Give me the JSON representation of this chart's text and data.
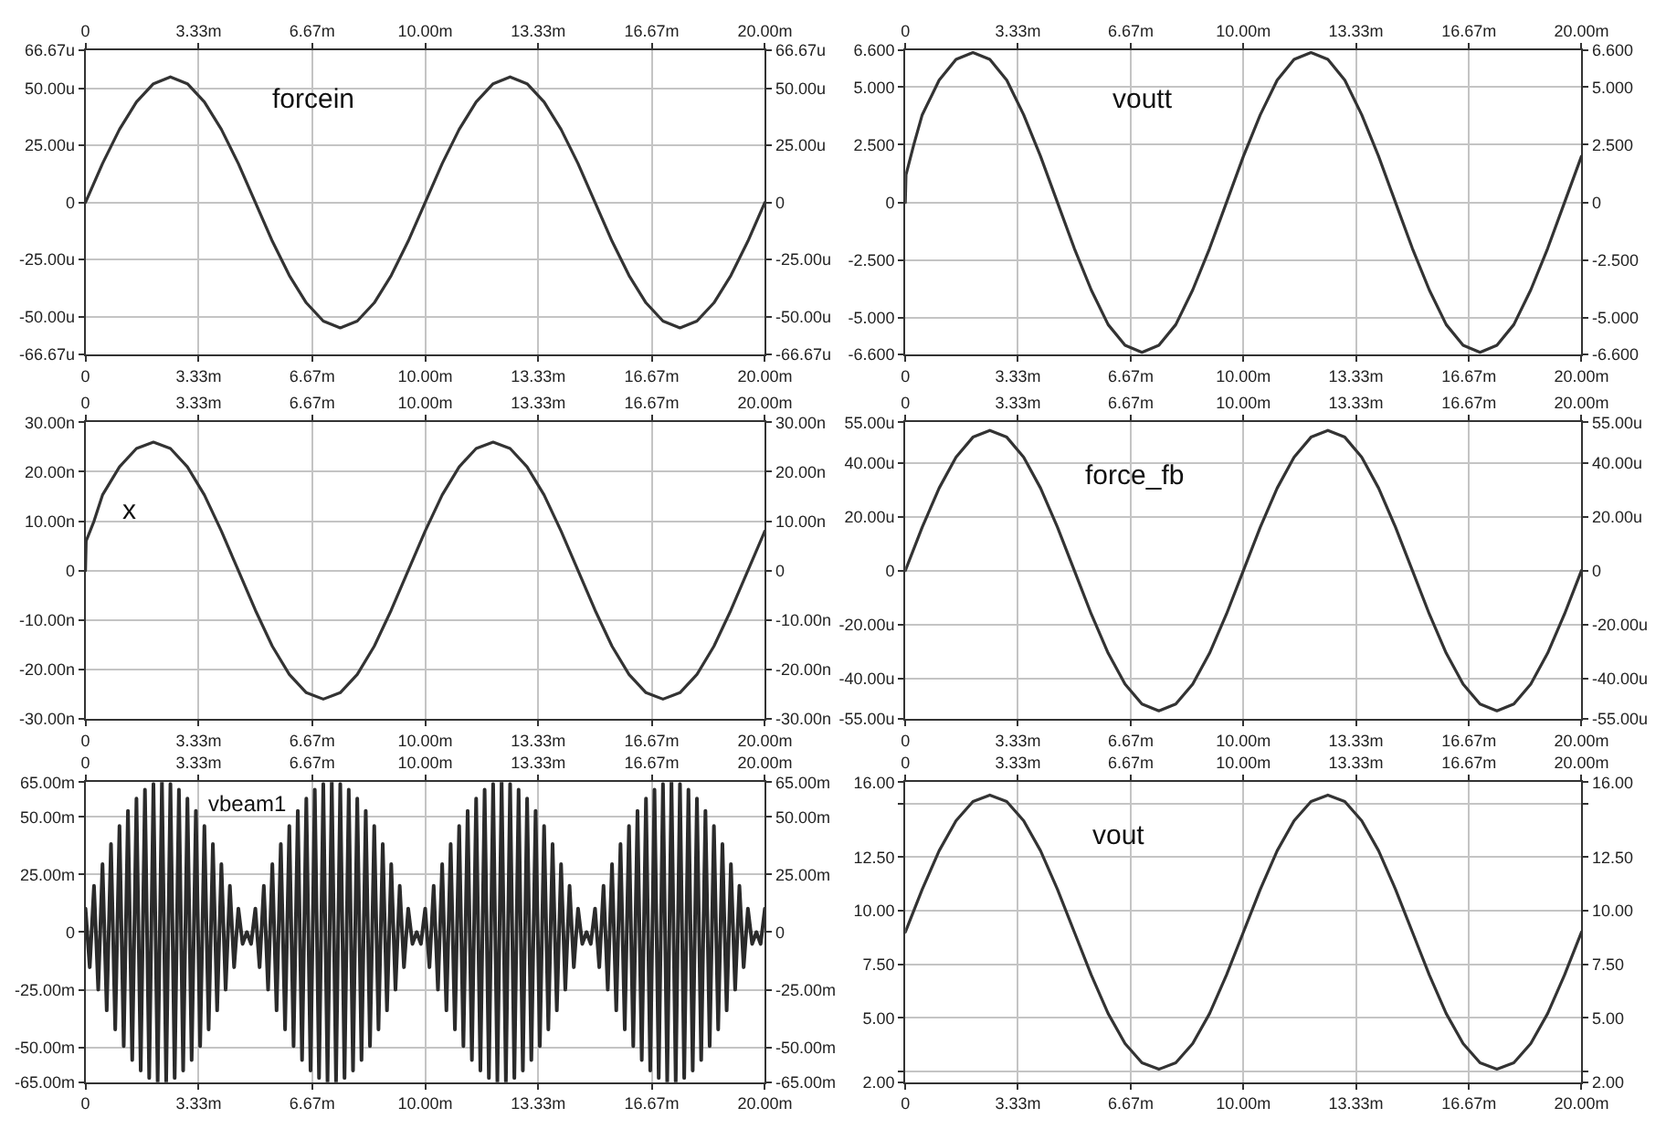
{
  "chart_data": [
    {
      "type": "line",
      "x": [
        0,
        0.5,
        1,
        1.5,
        2,
        2.5,
        3,
        3.5,
        4,
        4.5,
        5,
        5.5,
        6,
        6.5,
        7,
        7.5,
        8,
        8.5,
        9,
        9.5,
        10,
        10.5,
        11,
        11.5,
        12,
        12.5,
        13,
        13.5,
        14,
        14.5,
        15,
        15.5,
        16,
        16.5,
        17,
        17.5,
        18,
        18.5,
        19,
        19.5,
        20
      ],
      "series": [
        {
          "name": "forcein",
          "color": "#333333",
          "values": [
            0,
            17,
            32,
            44,
            52,
            55,
            52,
            44,
            32,
            17,
            0,
            -17,
            -32,
            -44,
            -52,
            -55,
            -52,
            -44,
            -32,
            -17,
            0,
            17,
            32,
            44,
            52,
            55,
            52,
            44,
            32,
            17,
            0,
            -17,
            -32,
            -44,
            -52,
            -55,
            -52,
            -44,
            -32,
            -17,
            0
          ]
        }
      ],
      "xlim": [
        0,
        20
      ],
      "xticks": [
        {
          "value": 0,
          "label": "0"
        },
        {
          "value": 3.33,
          "label": "3.33m"
        },
        {
          "value": 6.67,
          "label": "6.67m"
        },
        {
          "value": 10,
          "label": "10.00m"
        },
        {
          "value": 13.33,
          "label": "13.33m"
        },
        {
          "value": 16.67,
          "label": "16.67m"
        },
        {
          "value": 20,
          "label": "20.00m"
        }
      ],
      "x2lim": [
        0,
        20
      ],
      "x2ticks": [
        {
          "value": 0,
          "label": "0"
        },
        {
          "value": 3.33,
          "label": "3.33m"
        },
        {
          "value": 6.67,
          "label": "6.67m"
        },
        {
          "value": 10,
          "label": "10.00m"
        },
        {
          "value": 13.33,
          "label": "13.33m"
        },
        {
          "value": 16.67,
          "label": "16.67m"
        },
        {
          "value": 20,
          "label": "20.00m"
        }
      ],
      "ylim": [
        -66.67,
        66.67
      ],
      "yticks": [
        {
          "value": -66.67,
          "label": "-66.67u"
        },
        {
          "value": -50,
          "label": "-50.00u"
        },
        {
          "value": -25,
          "label": "-25.00u"
        },
        {
          "value": 0,
          "label": "0"
        },
        {
          "value": 25,
          "label": "25.00u"
        },
        {
          "value": 50,
          "label": "50.00u"
        },
        {
          "value": 66.67,
          "label": "66.67u"
        }
      ],
      "y2lim": [
        -66.67,
        66.67
      ],
      "y2ticks": [
        {
          "value": -66.67,
          "label": "-66.67u"
        },
        {
          "value": -50,
          "label": "-50.00u"
        },
        {
          "value": -25,
          "label": "-25.00u"
        },
        {
          "value": 0,
          "label": "0"
        },
        {
          "value": 25,
          "label": "25.00u"
        },
        {
          "value": 50,
          "label": "50.00u"
        },
        {
          "value": 66.67,
          "label": "66.67u"
        }
      ],
      "grid": true
    },
    {
      "type": "line",
      "x": [
        0,
        0.02,
        0.25,
        0.5,
        1,
        1.5,
        2,
        2.5,
        3,
        3.5,
        4,
        4.5,
        5,
        5.5,
        6,
        6.5,
        7,
        7.5,
        8,
        8.5,
        9,
        9.5,
        10,
        10.5,
        11,
        11.5,
        12,
        12.5,
        13,
        13.5,
        14,
        14.5,
        15,
        15.5,
        16,
        16.5,
        17,
        17.5,
        18,
        18.5,
        19,
        19.5,
        20
      ],
      "series": [
        {
          "name": "voutt",
          "color": "#333333",
          "values": [
            0,
            1.2,
            2.5,
            3.8,
            5.3,
            6.2,
            6.5,
            6.2,
            5.3,
            3.8,
            2.0,
            0,
            -2.0,
            -3.8,
            -5.3,
            -6.2,
            -6.5,
            -6.2,
            -5.3,
            -3.8,
            -2.0,
            0,
            2.0,
            3.8,
            5.3,
            6.2,
            6.5,
            6.2,
            5.3,
            3.8,
            2.0,
            0,
            -2.0,
            -3.8,
            -5.3,
            -6.2,
            -6.5,
            -6.2,
            -5.3,
            -3.8,
            -2.0,
            0,
            2.0
          ]
        }
      ],
      "xlim": [
        0,
        20
      ],
      "xticks": [
        {
          "value": 0,
          "label": "0"
        },
        {
          "value": 3.33,
          "label": "3.33m"
        },
        {
          "value": 6.67,
          "label": "6.67m"
        },
        {
          "value": 10,
          "label": "10.00m"
        },
        {
          "value": 13.33,
          "label": "13.33m"
        },
        {
          "value": 16.67,
          "label": "16.67m"
        },
        {
          "value": 20,
          "label": "20.00m"
        }
      ],
      "x2lim": [
        0,
        20
      ],
      "x2ticks": [
        {
          "value": 0,
          "label": "0"
        },
        {
          "value": 3.33,
          "label": "3.33m"
        },
        {
          "value": 6.67,
          "label": "6.67m"
        },
        {
          "value": 10,
          "label": "10.00m"
        },
        {
          "value": 13.33,
          "label": "13.33m"
        },
        {
          "value": 16.67,
          "label": "16.67m"
        },
        {
          "value": 20,
          "label": "20.00m"
        }
      ],
      "ylim": [
        -6.6,
        6.6
      ],
      "yticks": [
        {
          "value": -6.6,
          "label": "-6.600"
        },
        {
          "value": -5,
          "label": "-5.000"
        },
        {
          "value": -2.5,
          "label": "-2.500"
        },
        {
          "value": 0,
          "label": "0"
        },
        {
          "value": 2.5,
          "label": "2.500"
        },
        {
          "value": 5,
          "label": "5.000"
        },
        {
          "value": 6.6,
          "label": "6.600"
        }
      ],
      "y2lim": [
        -6.6,
        6.6
      ],
      "y2ticks": [
        {
          "value": -6.6,
          "label": "-6.600"
        },
        {
          "value": -5,
          "label": "-5.000"
        },
        {
          "value": -2.5,
          "label": "-2.500"
        },
        {
          "value": 0,
          "label": "0"
        },
        {
          "value": 2.5,
          "label": "2.500"
        },
        {
          "value": 5,
          "label": "5.000"
        },
        {
          "value": 6.6,
          "label": "6.600"
        }
      ],
      "grid": true
    },
    {
      "type": "line",
      "x": [
        0,
        0.02,
        0.25,
        0.5,
        1,
        1.5,
        2,
        2.5,
        3,
        3.5,
        4,
        4.5,
        5,
        5.5,
        6,
        6.5,
        7,
        7.5,
        8,
        8.5,
        9,
        9.5,
        10,
        10.5,
        11,
        11.5,
        12,
        12.5,
        13,
        13.5,
        14,
        14.5,
        15,
        15.5,
        16,
        16.5,
        17,
        17.5,
        18,
        18.5,
        19,
        19.5,
        20
      ],
      "series": [
        {
          "name": "x",
          "color": "#333333",
          "values": [
            0,
            6,
            10,
            15.3,
            21.0,
            24.7,
            26,
            24.7,
            21.0,
            15.3,
            8.0,
            0,
            -8.0,
            -15.3,
            -21.0,
            -24.7,
            -26,
            -24.7,
            -21.0,
            -15.3,
            -8.0,
            0,
            8.0,
            15.3,
            21.0,
            24.7,
            26,
            24.7,
            21.0,
            15.3,
            8.0,
            0,
            -8.0,
            -15.3,
            -21.0,
            -24.7,
            -26,
            -24.7,
            -21.0,
            -15.3,
            -8.0,
            0,
            8.0
          ]
        }
      ],
      "xlim": [
        0,
        20
      ],
      "xticks": [
        {
          "value": 0,
          "label": "0"
        },
        {
          "value": 3.33,
          "label": "3.33m"
        },
        {
          "value": 6.67,
          "label": "6.67m"
        },
        {
          "value": 10,
          "label": "10.00m"
        },
        {
          "value": 13.33,
          "label": "13.33m"
        },
        {
          "value": 16.67,
          "label": "16.67m"
        },
        {
          "value": 20,
          "label": "20.00m"
        }
      ],
      "x2lim": [
        0,
        20
      ],
      "x2ticks": [
        {
          "value": 0,
          "label": "0"
        },
        {
          "value": 3.33,
          "label": "3.33m"
        },
        {
          "value": 6.67,
          "label": "6.67m"
        },
        {
          "value": 10,
          "label": "10.00m"
        },
        {
          "value": 13.33,
          "label": "13.33m"
        },
        {
          "value": 16.67,
          "label": "16.67m"
        },
        {
          "value": 20,
          "label": "20.00m"
        }
      ],
      "ylim": [
        -30,
        30
      ],
      "yticks": [
        {
          "value": -30,
          "label": "-30.00n"
        },
        {
          "value": -20,
          "label": "-20.00n"
        },
        {
          "value": -10,
          "label": "-10.00n"
        },
        {
          "value": 0,
          "label": "0"
        },
        {
          "value": 10,
          "label": "10.00n"
        },
        {
          "value": 20,
          "label": "20.00n"
        },
        {
          "value": 30,
          "label": "30.00n"
        }
      ],
      "y2lim": [
        -30,
        30
      ],
      "y2ticks": [
        {
          "value": -30,
          "label": "-30.00n"
        },
        {
          "value": -20,
          "label": "-20.00n"
        },
        {
          "value": -10,
          "label": "-10.00n"
        },
        {
          "value": 0,
          "label": "0"
        },
        {
          "value": 10,
          "label": "10.00n"
        },
        {
          "value": 20,
          "label": "20.00n"
        },
        {
          "value": 30,
          "label": "30.00n"
        }
      ],
      "grid": true
    },
    {
      "type": "line",
      "x": [
        0,
        0.5,
        1,
        1.5,
        2,
        2.5,
        3,
        3.5,
        4,
        4.5,
        5,
        5.5,
        6,
        6.5,
        7,
        7.5,
        8,
        8.5,
        9,
        9.5,
        10,
        10.5,
        11,
        11.5,
        12,
        12.5,
        13,
        13.5,
        14,
        14.5,
        15,
        15.5,
        16,
        16.5,
        17,
        17.5,
        18,
        18.5,
        19,
        19.5,
        20
      ],
      "series": [
        {
          "name": "force_fb",
          "color": "#333333",
          "values": [
            0,
            16.1,
            30.6,
            42.1,
            49.5,
            52,
            49.5,
            42.1,
            30.6,
            16.1,
            0,
            -16.1,
            -30.6,
            -42.1,
            -49.5,
            -52,
            -49.5,
            -42.1,
            -30.6,
            -16.1,
            0,
            16.1,
            30.6,
            42.1,
            49.5,
            52,
            49.5,
            42.1,
            30.6,
            16.1,
            0,
            -16.1,
            -30.6,
            -42.1,
            -49.5,
            -52,
            -49.5,
            -42.1,
            -30.6,
            -16.1,
            0
          ]
        }
      ],
      "xlim": [
        0,
        20
      ],
      "xticks": [
        {
          "value": 0,
          "label": "0"
        },
        {
          "value": 3.33,
          "label": "3.33m"
        },
        {
          "value": 6.67,
          "label": "6.67m"
        },
        {
          "value": 10,
          "label": "10.00m"
        },
        {
          "value": 13.33,
          "label": "13.33m"
        },
        {
          "value": 16.67,
          "label": "16.67m"
        },
        {
          "value": 20,
          "label": "20.00m"
        }
      ],
      "x2lim": [
        0,
        20
      ],
      "x2ticks": [
        {
          "value": 0,
          "label": "0"
        },
        {
          "value": 3.33,
          "label": "3.33m"
        },
        {
          "value": 6.67,
          "label": "6.67m"
        },
        {
          "value": 10,
          "label": "10.00m"
        },
        {
          "value": 13.33,
          "label": "13.33m"
        },
        {
          "value": 16.67,
          "label": "16.67m"
        },
        {
          "value": 20,
          "label": "20.00m"
        }
      ],
      "ylim": [
        -55,
        55
      ],
      "yticks": [
        {
          "value": -55,
          "label": "-55.00u"
        },
        {
          "value": -40,
          "label": "-40.00u"
        },
        {
          "value": -20,
          "label": "-20.00u"
        },
        {
          "value": 0,
          "label": "0"
        },
        {
          "value": 20,
          "label": "20.00u"
        },
        {
          "value": 40,
          "label": "40.00u"
        },
        {
          "value": 55,
          "label": "55.00u"
        }
      ],
      "y2lim": [
        -55,
        55
      ],
      "y2ticks": [
        {
          "value": -55,
          "label": "-55.00u"
        },
        {
          "value": -40,
          "label": "-40.00u"
        },
        {
          "value": -20,
          "label": "-20.00u"
        },
        {
          "value": 0,
          "label": "0"
        },
        {
          "value": 20,
          "label": "20.00u"
        },
        {
          "value": 40,
          "label": "40.00u"
        },
        {
          "value": 55,
          "label": "55.00u"
        }
      ],
      "grid": true
    },
    {
      "type": "line",
      "x": [
        0,
        0.125,
        0.25,
        0.375,
        0.5,
        0.625,
        0.75,
        0.875,
        1,
        1.125,
        1.25,
        1.375,
        1.5,
        1.625,
        1.75,
        1.875,
        2,
        2.125,
        2.25,
        2.375,
        2.5,
        2.625,
        2.75,
        2.875,
        3,
        3.125,
        3.25,
        3.375,
        3.5,
        3.625,
        3.75,
        3.875,
        4,
        4.125,
        4.25,
        4.375,
        4.5,
        4.625,
        4.75,
        4.875,
        5,
        5.125,
        5.25,
        5.375,
        5.5,
        5.625,
        5.75,
        5.875,
        6,
        6.125,
        6.25,
        6.375,
        6.5,
        6.625,
        6.75,
        6.875,
        7,
        7.125,
        7.25,
        7.375,
        7.5,
        7.625,
        7.75,
        7.875,
        8,
        8.125,
        8.25,
        8.375,
        8.5,
        8.625,
        8.75,
        8.875,
        9,
        9.125,
        9.25,
        9.375,
        9.5,
        9.625,
        9.75,
        9.875,
        10,
        10.125,
        10.25,
        10.375,
        10.5,
        10.625,
        10.75,
        10.875,
        11,
        11.125,
        11.25,
        11.375,
        11.5,
        11.625,
        11.75,
        11.875,
        12,
        12.125,
        12.25,
        12.375,
        12.5,
        12.625,
        12.75,
        12.875,
        13,
        13.125,
        13.25,
        13.375,
        13.5,
        13.625,
        13.75,
        13.875,
        14,
        14.125,
        14.25,
        14.375,
        14.5,
        14.625,
        14.75,
        14.875,
        15,
        15.125,
        15.25,
        15.375,
        15.5,
        15.625,
        15.75,
        15.875,
        16,
        16.125,
        16.25,
        16.375,
        16.5,
        16.625,
        16.75,
        16.875,
        17,
        17.125,
        17.25,
        17.375,
        17.5,
        17.625,
        17.75,
        17.875,
        18,
        18.125,
        18.25,
        18.375,
        18.5,
        18.625,
        18.75,
        18.875,
        19,
        19.125,
        19.25,
        19.375,
        19.5,
        19.625,
        19.75,
        19.875,
        20
      ],
      "series": [
        {
          "name": "vbeam1",
          "color": "#2b2b2b",
          "values": [
            10.2,
            -15.2,
            20.1,
            -24.9,
            29.5,
            -33.9,
            38.2,
            -42.2,
            46.0,
            -49.4,
            52.6,
            -55.4,
            57.9,
            -60.0,
            61.8,
            -63.2,
            64.2,
            -64.8,
            65,
            -64.8,
            64.2,
            -63.2,
            61.8,
            -60.0,
            57.9,
            -55.4,
            52.6,
            -49.4,
            46.0,
            -42.2,
            38.2,
            -33.9,
            29.5,
            -24.9,
            20.1,
            -15.2,
            10.2,
            -5.1,
            0,
            -5.1,
            10.2,
            -15.2,
            20.1,
            -24.9,
            29.5,
            -33.9,
            38.2,
            -42.2,
            46.0,
            -49.4,
            52.6,
            -55.4,
            57.9,
            -60.0,
            61.8,
            -63.2,
            64.2,
            -64.8,
            65,
            -64.8,
            64.2,
            -63.2,
            61.8,
            -60.0,
            57.9,
            -55.4,
            52.6,
            -49.4,
            46.0,
            -42.2,
            38.2,
            -33.9,
            29.5,
            -24.9,
            20.1,
            -15.2,
            10.2,
            -5.1,
            0,
            -5.1,
            10.2,
            -15.2,
            20.1,
            -24.9,
            29.5,
            -33.9,
            38.2,
            -42.2,
            46.0,
            -49.4,
            52.6,
            -55.4,
            57.9,
            -60.0,
            61.8,
            -63.2,
            64.2,
            -64.8,
            65,
            -64.8,
            64.2,
            -63.2,
            61.8,
            -60.0,
            57.9,
            -55.4,
            52.6,
            -49.4,
            46.0,
            -42.2,
            38.2,
            -33.9,
            29.5,
            -24.9,
            20.1,
            -15.2,
            10.2,
            -5.1,
            0,
            -5.1,
            10.2,
            -15.2,
            20.1,
            -24.9,
            29.5,
            -33.9,
            38.2,
            -42.2,
            46.0,
            -49.4,
            52.6,
            -55.4,
            57.9,
            -60.0,
            61.8,
            -63.2,
            64.2,
            -64.8,
            65,
            -64.8,
            64.2,
            -63.2,
            61.8,
            -60.0,
            57.9,
            -55.4,
            52.6,
            -49.4,
            46.0,
            -42.2,
            38.2,
            -33.9,
            29.5,
            -24.9,
            20.1,
            -15.2,
            10.2,
            -5.1,
            0,
            -5.1,
            10.2
          ]
        }
      ],
      "xlim": [
        0,
        20
      ],
      "xticks": [
        {
          "value": 0,
          "label": "0"
        },
        {
          "value": 3.33,
          "label": "3.33m"
        },
        {
          "value": 6.67,
          "label": "6.67m"
        },
        {
          "value": 10,
          "label": "10.00m"
        },
        {
          "value": 13.33,
          "label": "13.33m"
        },
        {
          "value": 16.67,
          "label": "16.67m"
        },
        {
          "value": 20,
          "label": "20.00m"
        }
      ],
      "x2lim": [
        0,
        20
      ],
      "x2ticks": [
        {
          "value": 0,
          "label": "0"
        },
        {
          "value": 3.33,
          "label": "3.33m"
        },
        {
          "value": 6.67,
          "label": "6.67m"
        },
        {
          "value": 10,
          "label": "10.00m"
        },
        {
          "value": 13.33,
          "label": "13.33m"
        },
        {
          "value": 16.67,
          "label": "16.67m"
        },
        {
          "value": 20,
          "label": "20.00m"
        }
      ],
      "ylim": [
        -65,
        65
      ],
      "yticks": [
        {
          "value": -65,
          "label": "-65.00m"
        },
        {
          "value": -50,
          "label": "-50.00m"
        },
        {
          "value": -25,
          "label": "-25.00m"
        },
        {
          "value": 0,
          "label": "0"
        },
        {
          "value": 25,
          "label": "25.00m"
        },
        {
          "value": 50,
          "label": "50.00m"
        },
        {
          "value": 65,
          "label": "65.00m"
        }
      ],
      "y2lim": [
        -65,
        65
      ],
      "y2ticks": [
        {
          "value": -65,
          "label": "-65.00m"
        },
        {
          "value": -50,
          "label": "-50.00m"
        },
        {
          "value": -25,
          "label": "-25.00m"
        },
        {
          "value": 0,
          "label": "0"
        },
        {
          "value": 25,
          "label": "25.00m"
        },
        {
          "value": 50,
          "label": "50.00m"
        },
        {
          "value": 65,
          "label": "65.00m"
        }
      ],
      "grid": true
    },
    {
      "type": "line",
      "x": [
        0,
        0.5,
        1,
        1.5,
        2,
        2.5,
        3,
        3.5,
        4,
        4.5,
        5,
        5.5,
        6,
        6.5,
        7,
        7.5,
        8,
        8.5,
        9,
        9.5,
        10,
        10.5,
        11,
        11.5,
        12,
        12.5,
        13,
        13.5,
        14,
        14.5,
        15,
        15.5,
        16,
        16.5,
        17,
        17.5,
        18,
        18.5,
        19,
        19.5,
        20
      ],
      "series": [
        {
          "name": "vout",
          "color": "#333333",
          "values": [
            9,
            11,
            12.8,
            14.2,
            15.1,
            15.4,
            15.1,
            14.2,
            12.8,
            11,
            9,
            7,
            5.2,
            3.8,
            2.9,
            2.6,
            2.9,
            3.8,
            5.2,
            7,
            9,
            11,
            12.8,
            14.2,
            15.1,
            15.4,
            15.1,
            14.2,
            12.8,
            11,
            9,
            7,
            5.2,
            3.8,
            2.9,
            2.6,
            2.9,
            3.8,
            5.2,
            7,
            9
          ]
        }
      ],
      "xlim": [
        0,
        20
      ],
      "xticks": [
        {
          "value": 0,
          "label": "0"
        },
        {
          "value": 3.33,
          "label": "3.33m"
        },
        {
          "value": 6.67,
          "label": "6.67m"
        },
        {
          "value": 10,
          "label": "10.00m"
        },
        {
          "value": 13.33,
          "label": "13.33m"
        },
        {
          "value": 16.67,
          "label": "16.67m"
        },
        {
          "value": 20,
          "label": "20.00m"
        }
      ],
      "x2lim": [
        0,
        20
      ],
      "x2ticks": [
        {
          "value": 0,
          "label": "0"
        },
        {
          "value": 3.33,
          "label": "3.33m"
        },
        {
          "value": 6.67,
          "label": "6.67m"
        },
        {
          "value": 10,
          "label": "10.00m"
        },
        {
          "value": 13.33,
          "label": "13.33m"
        },
        {
          "value": 16.67,
          "label": "16.67m"
        },
        {
          "value": 20,
          "label": "20.00m"
        }
      ],
      "ylim": [
        2,
        16
      ],
      "yticks": [
        {
          "value": 2,
          "label": "2.00"
        },
        {
          "value": 2.5,
          "label": null
        },
        {
          "value": 5,
          "label": "5.00"
        },
        {
          "value": 7.5,
          "label": "7.50"
        },
        {
          "value": 10,
          "label": "10.00"
        },
        {
          "value": 12.5,
          "label": "12.50"
        },
        {
          "value": 15,
          "label": null
        },
        {
          "value": 16,
          "label": "16.00"
        }
      ],
      "y2lim": [
        2,
        16
      ],
      "y2ticks": [
        {
          "value": 2,
          "label": "2.00"
        },
        {
          "value": 2.5,
          "label": null
        },
        {
          "value": 5,
          "label": "5.00"
        },
        {
          "value": 7.5,
          "label": "7.50"
        },
        {
          "value": 10,
          "label": "10.00"
        },
        {
          "value": 12.5,
          "label": "12.50"
        },
        {
          "value": 15,
          "label": null
        },
        {
          "value": 16,
          "label": "16.00"
        }
      ],
      "grid": true
    }
  ]
}
